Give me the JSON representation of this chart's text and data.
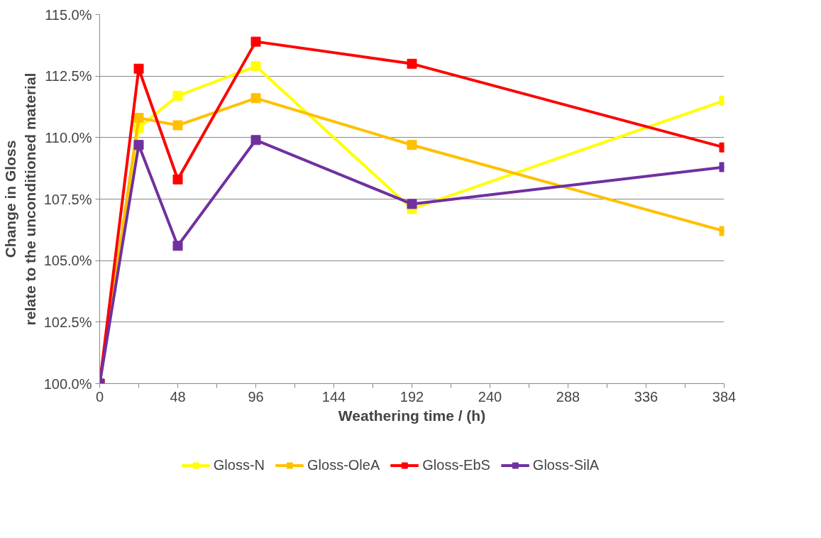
{
  "chart_data": {
    "type": "line",
    "xlabel": "Weathering time / (h)",
    "ylabel": "Change in Gloss\nrelate to the unconditioned material",
    "x": [
      0,
      24,
      48,
      96,
      192,
      384
    ],
    "series": [
      {
        "name": "Gloss-N",
        "color": "#ffff00",
        "values": [
          100.0,
          110.4,
          111.7,
          112.9,
          107.1,
          111.5
        ]
      },
      {
        "name": "Gloss-OleA",
        "color": "#ffc000",
        "values": [
          100.0,
          110.8,
          110.5,
          111.6,
          109.7,
          106.2
        ]
      },
      {
        "name": "Gloss-EbS",
        "color": "#ff0000",
        "values": [
          100.0,
          112.8,
          108.3,
          113.9,
          113.0,
          109.6
        ]
      },
      {
        "name": "Gloss-SilA",
        "color": "#7030a0",
        "values": [
          100.0,
          109.7,
          105.6,
          109.9,
          107.3,
          108.8
        ]
      }
    ],
    "xlim": [
      0,
      384
    ],
    "xticks": [
      0,
      {
        "value": 24,
        "label": null
      },
      48,
      {
        "value": 72,
        "label": null
      },
      96,
      {
        "value": 120,
        "label": null
      },
      144,
      {
        "value": 168,
        "label": null
      },
      192,
      {
        "value": 216,
        "label": null
      },
      240,
      {
        "value": 264,
        "label": null
      },
      288,
      {
        "value": 312,
        "label": null
      },
      336,
      {
        "value": 360,
        "label": null
      },
      384
    ],
    "ylim": [
      100,
      115
    ],
    "yticks": [
      {
        "value": 100,
        "label": "100.0%"
      },
      {
        "value": 102.5,
        "label": "102.5%"
      },
      {
        "value": 105,
        "label": "105.0%"
      },
      {
        "value": 107.5,
        "label": "107.5%"
      },
      {
        "value": 110,
        "label": "110.0%"
      },
      {
        "value": 112.5,
        "label": "112.5%"
      },
      {
        "value": 115,
        "label": "115.0%"
      }
    ],
    "grid": "y",
    "legend": "bottom",
    "marker": "square",
    "line_style": "solid"
  }
}
